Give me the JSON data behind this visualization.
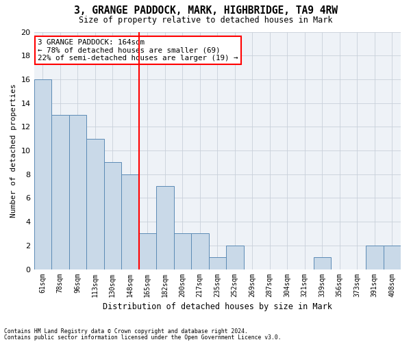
{
  "title": "3, GRANGE PADDOCK, MARK, HIGHBRIDGE, TA9 4RW",
  "subtitle": "Size of property relative to detached houses in Mark",
  "xlabel": "Distribution of detached houses by size in Mark",
  "ylabel": "Number of detached properties",
  "bar_labels": [
    "61sqm",
    "78sqm",
    "96sqm",
    "113sqm",
    "130sqm",
    "148sqm",
    "165sqm",
    "182sqm",
    "200sqm",
    "217sqm",
    "235sqm",
    "252sqm",
    "269sqm",
    "287sqm",
    "304sqm",
    "321sqm",
    "339sqm",
    "356sqm",
    "373sqm",
    "391sqm",
    "408sqm"
  ],
  "bar_values": [
    16,
    13,
    13,
    11,
    9,
    8,
    3,
    7,
    3,
    3,
    1,
    2,
    0,
    0,
    0,
    0,
    1,
    0,
    0,
    2,
    2
  ],
  "bar_color": "#c9d9e8",
  "bar_edge_color": "#5b8ab5",
  "vline_x": 6,
  "vline_color": "red",
  "ylim": [
    0,
    20
  ],
  "yticks": [
    0,
    2,
    4,
    6,
    8,
    10,
    12,
    14,
    16,
    18,
    20
  ],
  "annotation_text": "3 GRANGE PADDOCK: 164sqm\n← 78% of detached houses are smaller (69)\n22% of semi-detached houses are larger (19) →",
  "annotation_box_color": "white",
  "annotation_box_edge_color": "red",
  "footer1": "Contains HM Land Registry data © Crown copyright and database right 2024.",
  "footer2": "Contains public sector information licensed under the Open Government Licence v3.0.",
  "bg_color": "#eef2f7",
  "grid_color": "#c8d0da"
}
